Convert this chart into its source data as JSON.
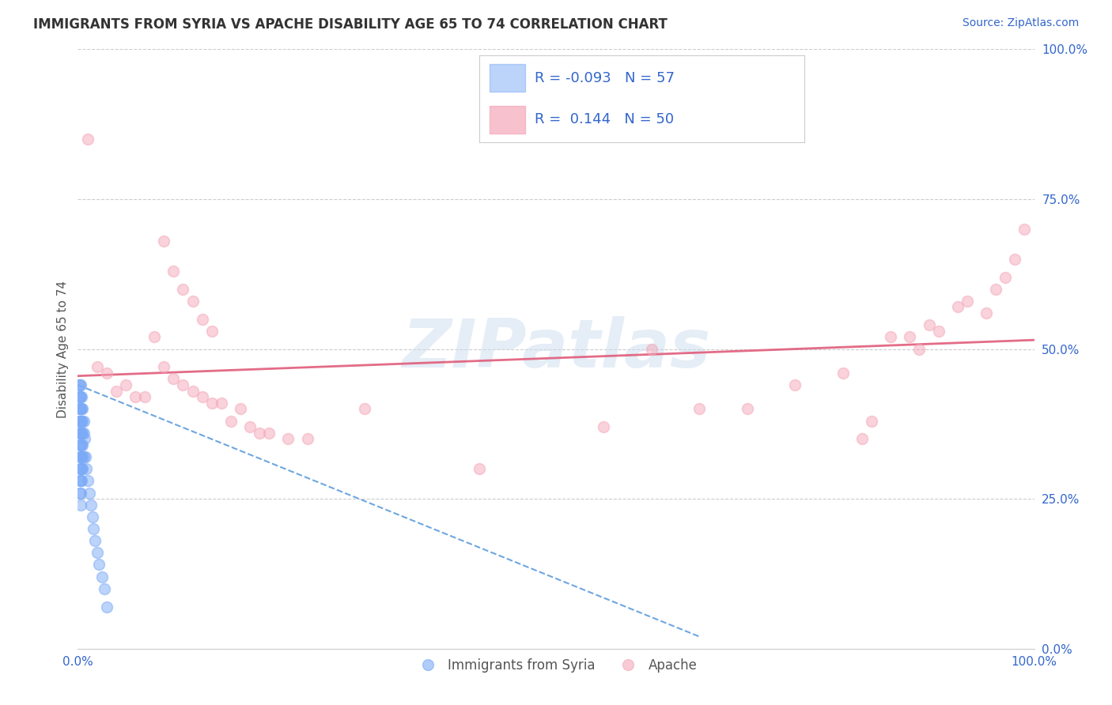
{
  "title": "IMMIGRANTS FROM SYRIA VS APACHE DISABILITY AGE 65 TO 74 CORRELATION CHART",
  "source_text": "Source: ZipAtlas.com",
  "ylabel": "Disability Age 65 to 74",
  "xlim": [
    0.0,
    1.0
  ],
  "ylim": [
    0.0,
    1.0
  ],
  "xtick_positions": [
    0.0,
    1.0
  ],
  "xtick_labels": [
    "0.0%",
    "100.0%"
  ],
  "ytick_values": [
    0.0,
    0.25,
    0.5,
    0.75,
    1.0
  ],
  "ytick_labels": [
    "0.0%",
    "25.0%",
    "50.0%",
    "75.0%",
    "100.0%"
  ],
  "watermark": "ZIPatlas",
  "legend_syria_R": "-0.093",
  "legend_syria_N": "57",
  "legend_apache_R": "0.144",
  "legend_apache_N": "50",
  "syria_color": "#7baaf7",
  "apache_color": "#f4a7b9",
  "syria_line_color": "#4a90d9",
  "apache_line_color": "#e05c7a",
  "background_color": "#ffffff",
  "grid_color": "#cccccc",
  "syria_scatter": [
    [
      0.001,
      0.44
    ],
    [
      0.001,
      0.42
    ],
    [
      0.001,
      0.4
    ],
    [
      0.001,
      0.38
    ],
    [
      0.001,
      0.36
    ],
    [
      0.002,
      0.44
    ],
    [
      0.002,
      0.42
    ],
    [
      0.002,
      0.4
    ],
    [
      0.002,
      0.38
    ],
    [
      0.002,
      0.36
    ],
    [
      0.002,
      0.34
    ],
    [
      0.002,
      0.32
    ],
    [
      0.002,
      0.3
    ],
    [
      0.002,
      0.28
    ],
    [
      0.002,
      0.26
    ],
    [
      0.003,
      0.44
    ],
    [
      0.003,
      0.42
    ],
    [
      0.003,
      0.4
    ],
    [
      0.003,
      0.38
    ],
    [
      0.003,
      0.36
    ],
    [
      0.003,
      0.34
    ],
    [
      0.003,
      0.32
    ],
    [
      0.003,
      0.3
    ],
    [
      0.003,
      0.28
    ],
    [
      0.003,
      0.26
    ],
    [
      0.003,
      0.24
    ],
    [
      0.004,
      0.42
    ],
    [
      0.004,
      0.4
    ],
    [
      0.004,
      0.38
    ],
    [
      0.004,
      0.36
    ],
    [
      0.004,
      0.34
    ],
    [
      0.004,
      0.32
    ],
    [
      0.004,
      0.3
    ],
    [
      0.004,
      0.28
    ],
    [
      0.005,
      0.4
    ],
    [
      0.005,
      0.38
    ],
    [
      0.005,
      0.36
    ],
    [
      0.005,
      0.34
    ],
    [
      0.005,
      0.32
    ],
    [
      0.005,
      0.3
    ],
    [
      0.006,
      0.38
    ],
    [
      0.006,
      0.36
    ],
    [
      0.006,
      0.32
    ],
    [
      0.007,
      0.35
    ],
    [
      0.008,
      0.32
    ],
    [
      0.009,
      0.3
    ],
    [
      0.01,
      0.28
    ],
    [
      0.012,
      0.26
    ],
    [
      0.014,
      0.24
    ],
    [
      0.015,
      0.22
    ],
    [
      0.016,
      0.2
    ],
    [
      0.018,
      0.18
    ],
    [
      0.02,
      0.16
    ],
    [
      0.022,
      0.14
    ],
    [
      0.025,
      0.12
    ],
    [
      0.028,
      0.1
    ],
    [
      0.03,
      0.07
    ]
  ],
  "apache_scatter": [
    [
      0.01,
      0.85
    ],
    [
      0.09,
      0.68
    ],
    [
      0.1,
      0.63
    ],
    [
      0.11,
      0.6
    ],
    [
      0.12,
      0.58
    ],
    [
      0.13,
      0.55
    ],
    [
      0.14,
      0.53
    ],
    [
      0.02,
      0.47
    ],
    [
      0.03,
      0.46
    ],
    [
      0.04,
      0.43
    ],
    [
      0.05,
      0.44
    ],
    [
      0.06,
      0.42
    ],
    [
      0.07,
      0.42
    ],
    [
      0.08,
      0.52
    ],
    [
      0.09,
      0.47
    ],
    [
      0.1,
      0.45
    ],
    [
      0.11,
      0.44
    ],
    [
      0.12,
      0.43
    ],
    [
      0.13,
      0.42
    ],
    [
      0.14,
      0.41
    ],
    [
      0.15,
      0.41
    ],
    [
      0.16,
      0.38
    ],
    [
      0.17,
      0.4
    ],
    [
      0.18,
      0.37
    ],
    [
      0.19,
      0.36
    ],
    [
      0.2,
      0.36
    ],
    [
      0.22,
      0.35
    ],
    [
      0.24,
      0.35
    ],
    [
      0.3,
      0.4
    ],
    [
      0.42,
      0.3
    ],
    [
      0.55,
      0.37
    ],
    [
      0.6,
      0.5
    ],
    [
      0.65,
      0.4
    ],
    [
      0.7,
      0.4
    ],
    [
      0.75,
      0.44
    ],
    [
      0.8,
      0.46
    ],
    [
      0.82,
      0.35
    ],
    [
      0.83,
      0.38
    ],
    [
      0.85,
      0.52
    ],
    [
      0.87,
      0.52
    ],
    [
      0.88,
      0.5
    ],
    [
      0.89,
      0.54
    ],
    [
      0.9,
      0.53
    ],
    [
      0.92,
      0.57
    ],
    [
      0.93,
      0.58
    ],
    [
      0.95,
      0.56
    ],
    [
      0.96,
      0.6
    ],
    [
      0.97,
      0.62
    ],
    [
      0.98,
      0.65
    ],
    [
      0.99,
      0.7
    ]
  ],
  "syria_line_x": [
    0.0,
    0.65
  ],
  "syria_line_y": [
    0.44,
    0.02
  ],
  "apache_line_x": [
    0.0,
    1.0
  ],
  "apache_line_y": [
    0.455,
    0.515
  ]
}
